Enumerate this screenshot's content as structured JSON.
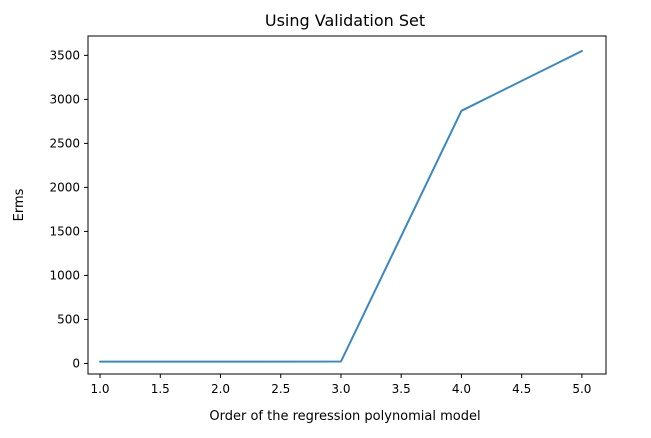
{
  "chart_data": {
    "type": "line",
    "title": "Using Validation Set",
    "xlabel": "Order of the regression polynomial model",
    "ylabel": "Erms",
    "x": [
      1,
      2,
      3,
      4,
      5
    ],
    "series": [
      {
        "values": [
          20,
          20,
          22,
          2870,
          3550
        ]
      }
    ],
    "xlim": [
      0.9,
      5.2
    ],
    "ylim": [
      -120,
      3720
    ],
    "xticks": [
      1.0,
      1.5,
      2.0,
      2.5,
      3.0,
      3.5,
      4.0,
      4.5,
      5.0
    ],
    "xtick_labels": [
      "1.0",
      "1.5",
      "2.0",
      "2.5",
      "3.0",
      "3.5",
      "4.0",
      "4.5",
      "5.0"
    ],
    "yticks": [
      0,
      500,
      1000,
      1500,
      2000,
      2500,
      3000,
      3500
    ],
    "ytick_labels": [
      "0",
      "500",
      "1000",
      "1500",
      "2000",
      "2500",
      "3000",
      "3500"
    ],
    "grid": false,
    "line_color": "#3a87c3"
  }
}
